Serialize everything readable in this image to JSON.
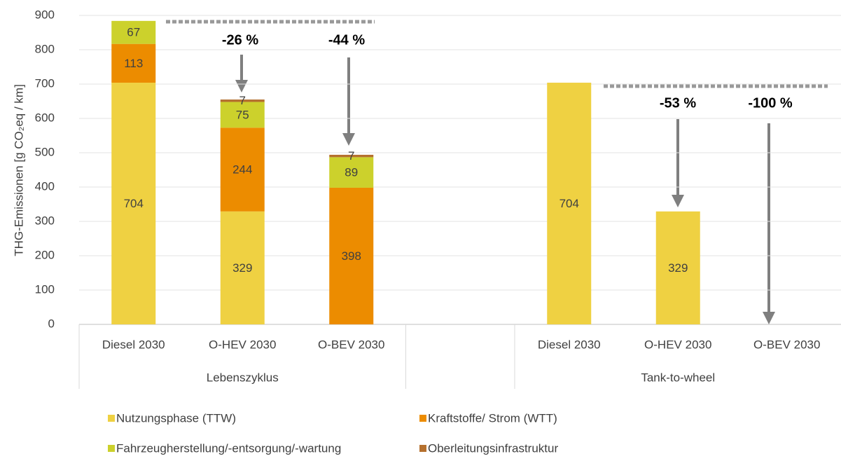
{
  "chart_data": {
    "type": "stacked_bar",
    "y_label": "THG-Emissionen [g CO₂eq / km]",
    "categories": [
      "Diesel 2030",
      "O-HEV 2030",
      "O-BEV 2030",
      null,
      "Diesel 2030",
      "O-HEV 2030",
      "O-BEV 2030"
    ],
    "groups": [
      "Lebenszyklus",
      "Tank-to-wheel"
    ],
    "series": [
      {
        "name": "Nutzungsphase (TTW)",
        "color": "#efd142",
        "values": [
          704,
          329,
          null,
          null,
          704,
          329,
          null
        ]
      },
      {
        "name": "Kraftstoffe/ Strom (WTT)",
        "color": "#ec8c00",
        "values": [
          113,
          244,
          398,
          null,
          null,
          null,
          null
        ]
      },
      {
        "name": "Fahrzeugherstellung/-entsorgung/-wartung",
        "color": "#ccd12c",
        "values": [
          67,
          75,
          89,
          null,
          null,
          null,
          null
        ]
      },
      {
        "name": "Oberleitungsinfrastruktur",
        "color": "#b5702e",
        "values": [
          null,
          7,
          7,
          null,
          null,
          null,
          null
        ]
      }
    ],
    "ylim": [
      0,
      900
    ],
    "yticks": [
      0,
      100,
      200,
      300,
      400,
      500,
      600,
      700,
      800,
      900
    ],
    "grid": true,
    "annotations": [
      "-26 %",
      "-44 %",
      "-53 %",
      "-100 %"
    ]
  }
}
